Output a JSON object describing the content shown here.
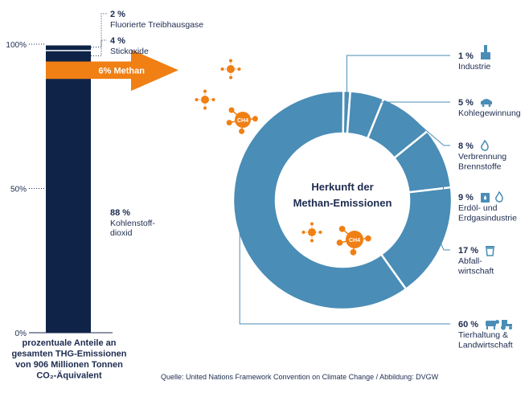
{
  "stacked_bar": {
    "ticks": [
      {
        "label": "100%",
        "value": 100
      },
      {
        "label": "50%",
        "value": 50
      },
      {
        "label": "0%",
        "value": 0
      }
    ],
    "segments": [
      {
        "pct_label": "88 %",
        "name_lines": [
          "Kohlenstoff-",
          "dioxid"
        ],
        "value": 88,
        "color": "#0e2347"
      },
      {
        "pct_label": "6% Methan",
        "name_lines": [],
        "value": 6,
        "color": "#f07f14"
      },
      {
        "pct_label": "4 %",
        "name_lines": [
          "Stickoxide"
        ],
        "value": 4,
        "color": "#0e2347"
      },
      {
        "pct_label": "2 %",
        "name_lines": [
          "Fluorierte Treibhausgase"
        ],
        "value": 2,
        "color": "#0e2347"
      }
    ],
    "caption_lines": [
      "prozentuale Anteile an",
      "gesamten THG-Emissionen",
      "von 906 Millionen Tonnen",
      "CO₂-Äquivalent"
    ]
  },
  "molecule_label": "CH4",
  "colors": {
    "navy": "#0e2347",
    "orange": "#f07f14",
    "donut": "#4a8db6",
    "text": "#1d2b4f"
  },
  "chart_data": {
    "type": "pie",
    "title": "Herkunft der Methan-Emissionen",
    "categories": [
      "Industrie",
      "Kohlegewinnung",
      "Verbrennung Brennstoffe",
      "Erdöl- und Erdgasindustrie",
      "Abfallwirtschaft",
      "Tierhaltung & Landwirtschaft"
    ],
    "values": [
      1,
      5,
      8,
      9,
      17,
      60
    ],
    "slices": [
      {
        "pct_label": "1 %",
        "name_lines": [
          "Industrie"
        ],
        "value": 1,
        "icons": [
          "factory-icon"
        ]
      },
      {
        "pct_label": "5 %",
        "name_lines": [
          "Kohlegewinnung"
        ],
        "value": 5,
        "icons": [
          "coal-cart-icon"
        ]
      },
      {
        "pct_label": "8 %",
        "name_lines": [
          "Verbrennung",
          "Brennstoffe"
        ],
        "value": 8,
        "icons": [
          "flame-icon"
        ]
      },
      {
        "pct_label": "9 %",
        "name_lines": [
          "Erdöl- und",
          "Erdgasindustrie"
        ],
        "value": 9,
        "icons": [
          "oil-drop-icon",
          "flame-icon"
        ]
      },
      {
        "pct_label": "17 %",
        "name_lines": [
          "Abfall-",
          "wirtschaft"
        ],
        "value": 17,
        "icons": [
          "trash-bin-icon"
        ]
      },
      {
        "pct_label": "60 %",
        "name_lines": [
          "Tierhaltung &",
          "Landwirtschaft"
        ],
        "value": 60,
        "icons": [
          "cow-icon",
          "tractor-icon"
        ]
      }
    ]
  },
  "source": "Quelle: United Nations Framework Convention on Climate Change / Abbildung: DVGW"
}
